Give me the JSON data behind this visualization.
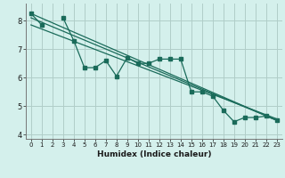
{
  "xlabel": "Humidex (Indice chaleur)",
  "bg_color": "#d4f0ec",
  "grid_color": "#b0cdc8",
  "line_color": "#1a6b5a",
  "xlim": [
    -0.5,
    23.5
  ],
  "ylim": [
    3.85,
    8.6
  ],
  "yticks": [
    4,
    5,
    6,
    7,
    8
  ],
  "xticks": [
    0,
    1,
    2,
    3,
    4,
    5,
    6,
    7,
    8,
    9,
    10,
    11,
    12,
    13,
    14,
    15,
    16,
    17,
    18,
    19,
    20,
    21,
    22,
    23
  ],
  "x": [
    0,
    1,
    2,
    3,
    4,
    5,
    6,
    7,
    8,
    9,
    10,
    11,
    12,
    13,
    14,
    15,
    16,
    17,
    18,
    19,
    20,
    21,
    22,
    23
  ],
  "line1": [
    8.25,
    7.85,
    null,
    8.1,
    7.3,
    6.35,
    6.35,
    6.6,
    6.05,
    6.7,
    6.5,
    6.5,
    6.65,
    6.65,
    6.65,
    5.5,
    5.5,
    5.35,
    4.85,
    4.45,
    4.6,
    4.6,
    4.65,
    4.5
  ],
  "line2": [
    [
      0,
      8.25
    ],
    [
      23,
      4.5
    ]
  ],
  "line3": [
    [
      0,
      8.1
    ],
    [
      23,
      4.5
    ]
  ],
  "line4": [
    [
      0,
      7.85
    ],
    [
      23,
      4.55
    ]
  ]
}
